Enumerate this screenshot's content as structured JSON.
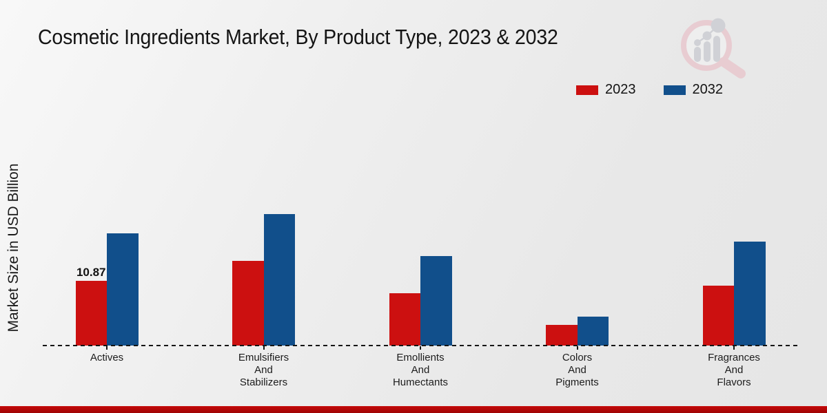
{
  "title": "Cosmetic Ingredients Market, By Product Type, 2023 & 2032",
  "legend": [
    {
      "label": "2023",
      "color": "#cc1010"
    },
    {
      "label": "2032",
      "color": "#114f8b"
    }
  ],
  "watermark_icon": "magnifier-bar-chart-logo",
  "chart_data": {
    "type": "bar",
    "title": "Cosmetic Ingredients Market, By Product Type, 2023 & 2032",
    "xlabel": "",
    "ylabel": "Market Size in USD Billion",
    "categories": [
      "Actives",
      "Emulsifiers\nAnd\nStabilizers",
      "Emollients\nAnd\nHumectants",
      "Colors\nAnd\nPigments",
      "Fragrances\nAnd\nFlavors"
    ],
    "series": [
      {
        "name": "2023",
        "color": "#cc1010",
        "values": [
          10.87,
          14.2,
          8.8,
          3.5,
          10.1
        ]
      },
      {
        "name": "2032",
        "color": "#114f8b",
        "values": [
          18.9,
          22.1,
          15.0,
          4.9,
          17.5
        ]
      }
    ],
    "bar_labels": [
      [
        "10.87",
        "",
        "",
        "",
        ""
      ],
      [
        "",
        "",
        "",
        "",
        ""
      ]
    ],
    "ylim": [
      0,
      24
    ],
    "grid": false,
    "y_axis_visible": false,
    "baseline_style": "dashed",
    "legend_position": "top-right",
    "units": "USD Billion"
  },
  "colors": {
    "accent_bottom_bar": "#c00707",
    "background": "#ededed",
    "text": "#1a1a1a"
  }
}
